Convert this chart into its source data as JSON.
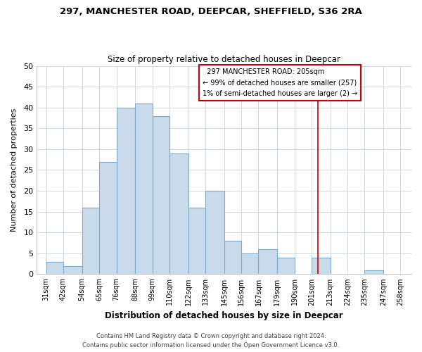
{
  "title_line1": "297, MANCHESTER ROAD, DEEPCAR, SHEFFIELD, S36 2RA",
  "title_line2": "Size of property relative to detached houses in Deepcar",
  "xlabel": "Distribution of detached houses by size in Deepcar",
  "ylabel": "Number of detached properties",
  "bar_left_edges": [
    31,
    42,
    54,
    65,
    76,
    88,
    99,
    110,
    122,
    133,
    145,
    156,
    167,
    179,
    190,
    201,
    213,
    224,
    235,
    247
  ],
  "bar_heights": [
    3,
    2,
    16,
    27,
    40,
    41,
    38,
    29,
    16,
    20,
    8,
    5,
    6,
    4,
    0,
    4,
    0,
    0,
    1,
    0
  ],
  "bar_widths": [
    11,
    12,
    11,
    11,
    12,
    11,
    11,
    12,
    11,
    12,
    11,
    11,
    12,
    11,
    11,
    12,
    11,
    11,
    12,
    11
  ],
  "tick_labels": [
    "31sqm",
    "42sqm",
    "54sqm",
    "65sqm",
    "76sqm",
    "88sqm",
    "99sqm",
    "110sqm",
    "122sqm",
    "133sqm",
    "145sqm",
    "156sqm",
    "167sqm",
    "179sqm",
    "190sqm",
    "201sqm",
    "213sqm",
    "224sqm",
    "235sqm",
    "247sqm",
    "258sqm"
  ],
  "tick_positions": [
    31,
    42,
    54,
    65,
    76,
    88,
    99,
    110,
    122,
    133,
    145,
    156,
    167,
    179,
    190,
    201,
    213,
    224,
    235,
    247,
    258
  ],
  "bar_color": "#c9daea",
  "bar_edgecolor": "#7baac8",
  "reference_line_x": 205,
  "reference_line_color": "#cc0000",
  "ylim": [
    0,
    50
  ],
  "xlim": [
    25,
    265
  ],
  "annotation_title": "297 MANCHESTER ROAD: 205sqm",
  "annotation_line1": "← 99% of detached houses are smaller (257)",
  "annotation_line2": "1% of semi-detached houses are larger (2) →",
  "yticks": [
    0,
    5,
    10,
    15,
    20,
    25,
    30,
    35,
    40,
    45,
    50
  ],
  "footer_line1": "Contains HM Land Registry data © Crown copyright and database right 2024.",
  "footer_line2": "Contains public sector information licensed under the Open Government Licence v3.0.",
  "background_color": "#ffffff",
  "plot_background_color": "#ffffff",
  "grid_color": "#d0d8e0"
}
